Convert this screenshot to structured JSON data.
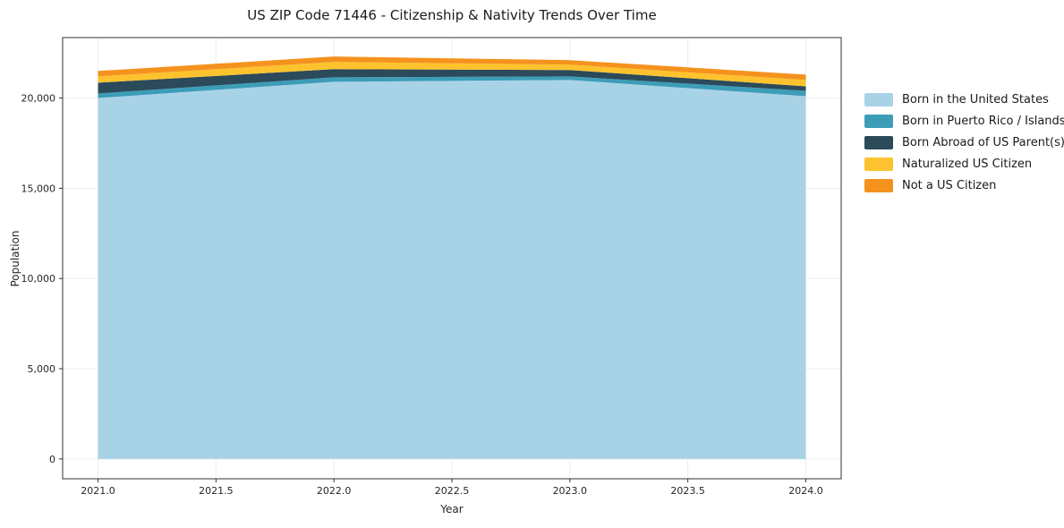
{
  "chart_data": {
    "type": "area",
    "title": "US ZIP Code 71446 - Citizenship & Nativity Trends Over Time",
    "xlabel": "Year",
    "ylabel": "Population",
    "x": [
      2021,
      2022,
      2023,
      2024
    ],
    "series": [
      {
        "name": "Born in the United States",
        "color": "#a8d3e7",
        "values": [
          20000,
          20900,
          21000,
          20100
        ]
      },
      {
        "name": "Born in Puerto Rico / Islands",
        "color": "#3d9db8",
        "values": [
          250,
          250,
          200,
          300
        ]
      },
      {
        "name": "Born Abroad of US Parent(s)",
        "color": "#2b4a5a",
        "values": [
          600,
          450,
          350,
          250
        ]
      },
      {
        "name": "Naturalized US Citizen",
        "color": "#fdc32e",
        "values": [
          350,
          400,
          300,
          350
        ]
      },
      {
        "name": "Not a US Citizen",
        "color": "#f5921e",
        "values": [
          300,
          300,
          250,
          300
        ]
      }
    ],
    "xticks": {
      "values": [
        2021,
        2021.5,
        2022,
        2022.5,
        2023,
        2023.5,
        2024
      ],
      "labels": [
        "2021.0",
        "2021.5",
        "2022.0",
        "2022.5",
        "2023.0",
        "2023.5",
        "2024.0"
      ]
    },
    "yticks": {
      "values": [
        0,
        5000,
        10000,
        15000,
        20000
      ],
      "labels": [
        "0",
        "5,000",
        "10,000",
        "15,000",
        "20,000"
      ]
    },
    "xlim": [
      2020.85,
      2024.15
    ],
    "ylim": [
      -1100,
      23350
    ],
    "legend_position": "right",
    "grid_color": "#ededed",
    "spine_color": "#333333",
    "tick_label_color": "#262626"
  }
}
